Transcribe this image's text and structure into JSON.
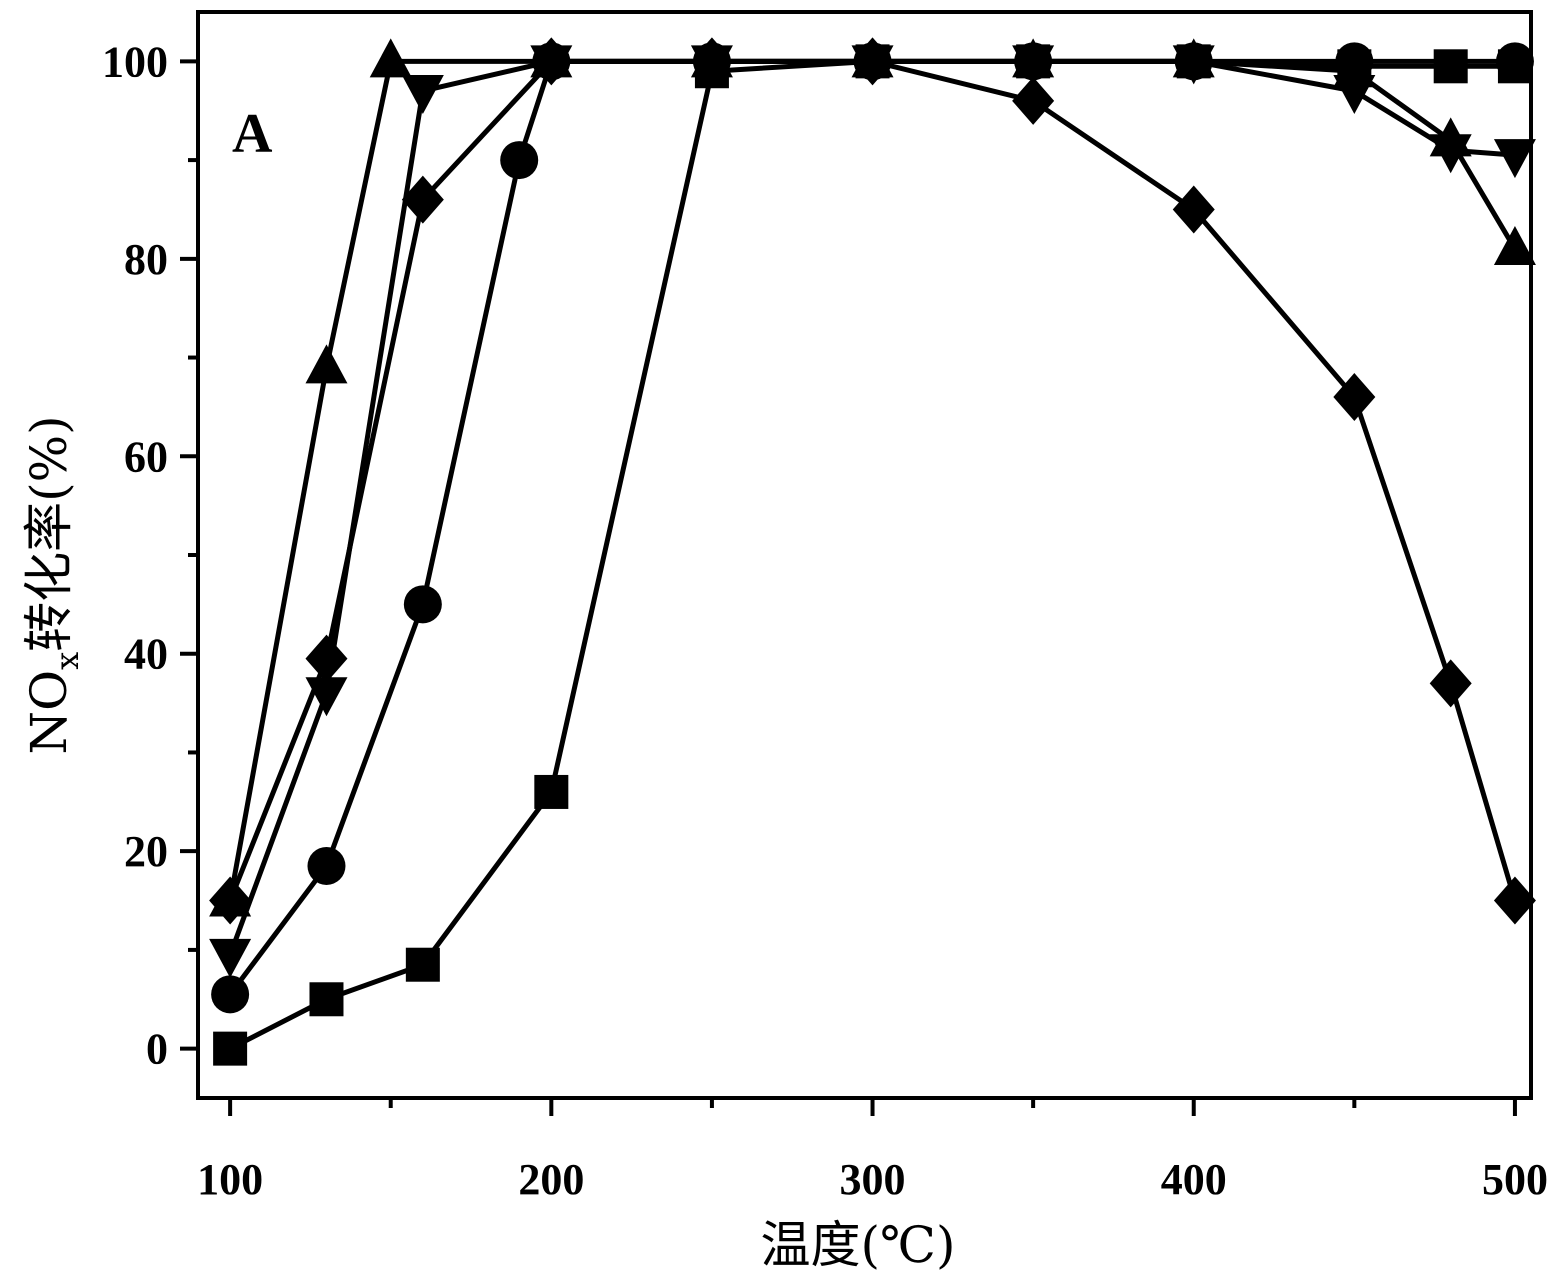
{
  "chart_data": {
    "type": "line",
    "panel_label": "A",
    "xlabel": "温度(℃)",
    "ylabel_main": "NO",
    "ylabel_sub": "x",
    "ylabel_rest": "转化率(%)",
    "xlim": [
      90,
      505
    ],
    "ylim": [
      -5,
      105
    ],
    "xticks": [
      100,
      200,
      300,
      400,
      500
    ],
    "xticks_minor": [
      150,
      250,
      350,
      450
    ],
    "yticks": [
      0,
      20,
      40,
      60,
      80,
      100
    ],
    "yticks_minor": [
      10,
      30,
      50,
      70,
      90
    ],
    "grid": false,
    "series": [
      {
        "marker": "square",
        "x": [
          100,
          130,
          160,
          200,
          250,
          300,
          350,
          400,
          450,
          480,
          500
        ],
        "y": [
          0,
          5,
          8.5,
          26,
          99,
          100,
          100,
          100,
          99.5,
          99.5,
          99.5
        ]
      },
      {
        "marker": "circle",
        "x": [
          100,
          130,
          160,
          190,
          200,
          250,
          300,
          350,
          400,
          450,
          500
        ],
        "y": [
          5.5,
          18.5,
          45,
          90,
          100,
          100,
          100,
          100,
          100,
          100,
          100
        ]
      },
      {
        "marker": "triangle-up",
        "x": [
          100,
          130,
          150,
          200,
          250,
          300,
          350,
          400,
          450,
          480,
          500
        ],
        "y": [
          15,
          69,
          100,
          100,
          100,
          100,
          100,
          100,
          99,
          92,
          81
        ]
      },
      {
        "marker": "triangle-down",
        "x": [
          100,
          130,
          160,
          200,
          250,
          300,
          350,
          400,
          450,
          480,
          500
        ],
        "y": [
          9.5,
          36,
          97,
          100,
          100,
          100,
          100,
          100,
          97,
          91,
          90.5
        ]
      },
      {
        "marker": "diamond",
        "x": [
          100,
          130,
          160,
          200,
          250,
          300,
          350,
          400,
          450,
          480,
          500
        ],
        "y": [
          15,
          39.5,
          86,
          100,
          100,
          100,
          96,
          85,
          66,
          37,
          15
        ]
      }
    ]
  }
}
